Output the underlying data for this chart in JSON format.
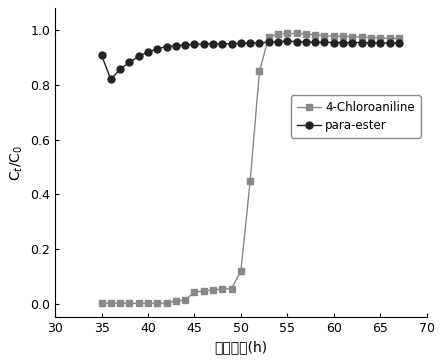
{
  "chloroaniline_x": [
    35,
    36,
    37,
    38,
    39,
    40,
    41,
    42,
    43,
    44,
    45,
    46,
    47,
    48,
    49,
    50,
    51,
    52,
    53,
    54,
    55,
    56,
    57,
    58,
    59,
    60,
    61,
    62,
    63,
    64,
    65,
    66,
    67
  ],
  "chloroaniline_y": [
    0.001,
    0.001,
    0.001,
    0.001,
    0.001,
    0.001,
    0.001,
    0.002,
    0.009,
    0.013,
    0.042,
    0.046,
    0.05,
    0.052,
    0.055,
    0.12,
    0.45,
    0.85,
    0.975,
    0.985,
    0.988,
    0.988,
    0.986,
    0.983,
    0.98,
    0.978,
    0.978,
    0.976,
    0.975,
    0.973,
    0.972,
    0.97,
    0.97
  ],
  "paraester_x": [
    35,
    36,
    37,
    38,
    39,
    40,
    41,
    42,
    43,
    44,
    45,
    46,
    47,
    48,
    49,
    50,
    51,
    52,
    53,
    54,
    55,
    56,
    57,
    58,
    59,
    60,
    61,
    62,
    63,
    64,
    65,
    66,
    67
  ],
  "paraester_y": [
    0.908,
    0.82,
    0.858,
    0.882,
    0.905,
    0.92,
    0.932,
    0.94,
    0.944,
    0.946,
    0.948,
    0.95,
    0.95,
    0.95,
    0.951,
    0.952,
    0.953,
    0.954,
    0.956,
    0.958,
    0.96,
    0.958,
    0.957,
    0.956,
    0.956,
    0.955,
    0.955,
    0.955,
    0.955,
    0.954,
    0.954,
    0.953,
    0.952
  ],
  "chloroaniline_color": "#888888",
  "paraester_color": "#222222",
  "xlabel": "吸附时间(h)",
  "ylabel": "C$_t$/C$_0$",
  "xlim": [
    30,
    70
  ],
  "ylim": [
    -0.05,
    1.08
  ],
  "xticks": [
    30,
    35,
    40,
    45,
    50,
    55,
    60,
    65,
    70
  ],
  "yticks": [
    0.0,
    0.2,
    0.4,
    0.6,
    0.8,
    1.0
  ],
  "legend_chloroaniline": "4-Chloroaniline",
  "legend_paraester": "para-ester",
  "background_color": "#ffffff"
}
